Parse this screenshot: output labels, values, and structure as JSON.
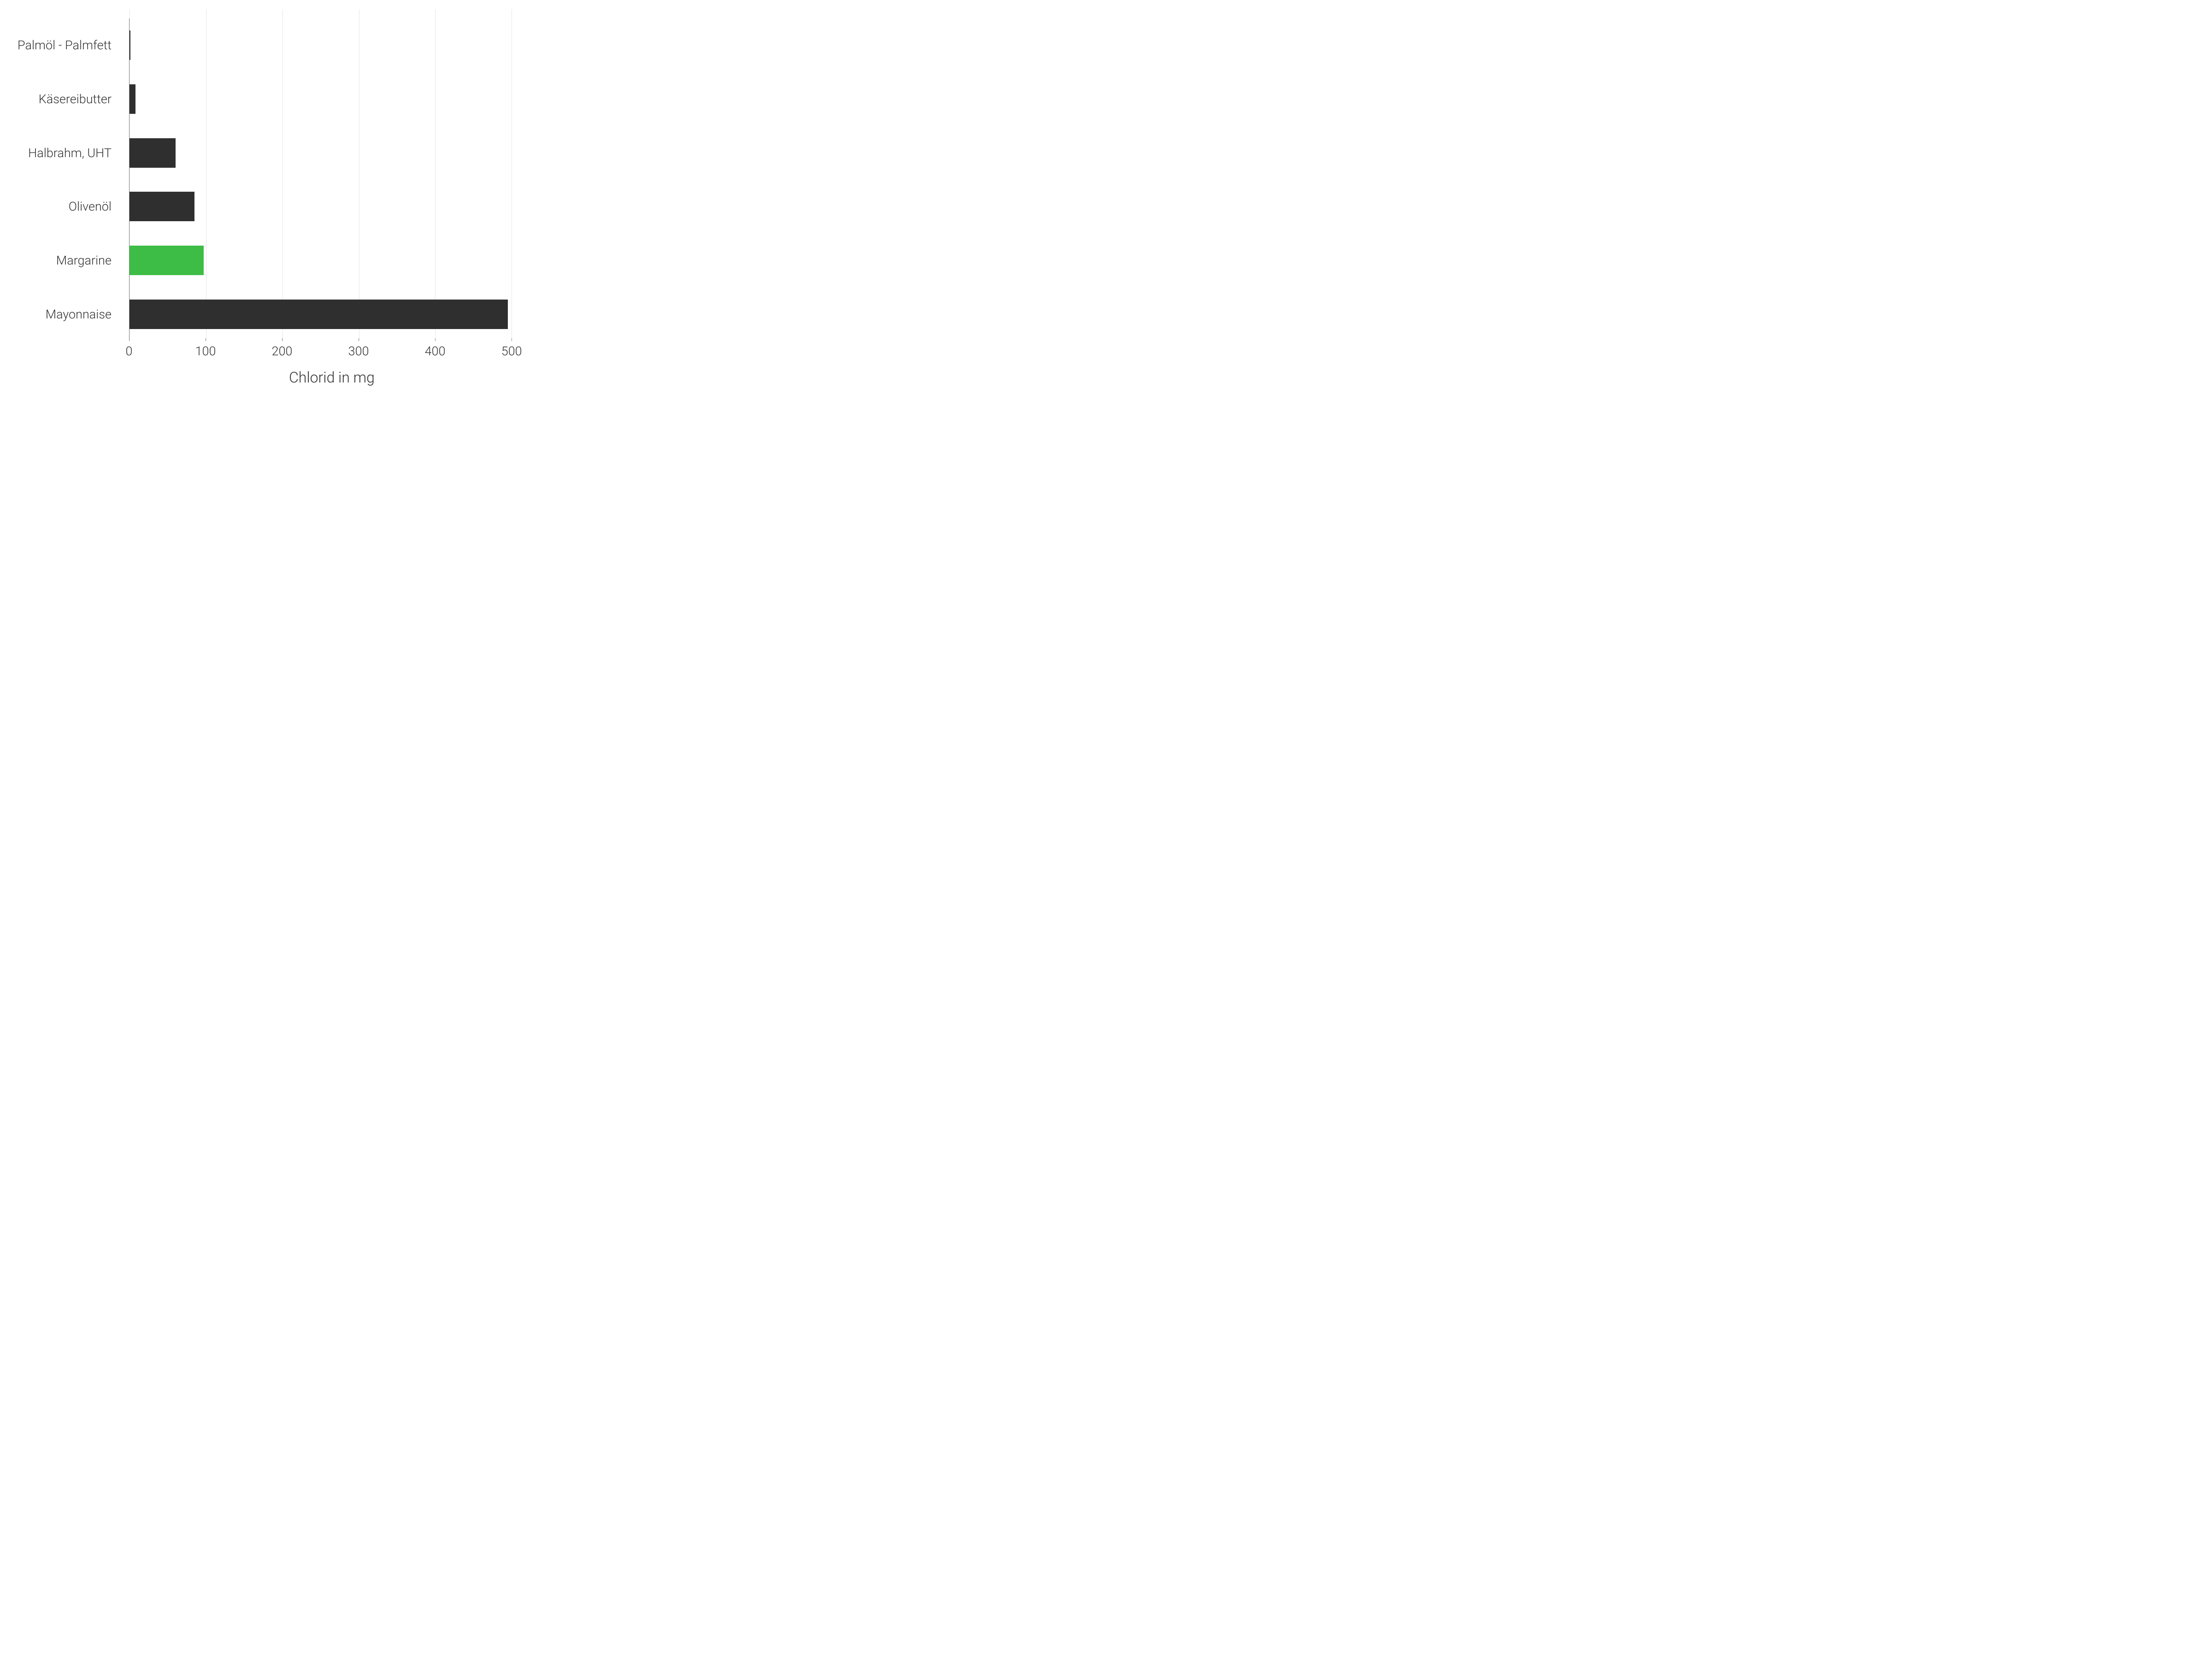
{
  "chart": {
    "type": "bar-horizontal",
    "x_axis": {
      "title": "Chlorid in mg",
      "min": 0,
      "max": 530,
      "ticks": [
        0,
        100,
        200,
        300,
        400,
        500
      ],
      "title_fontsize": 32,
      "tick_fontsize": 27
    },
    "y_axis": {
      "label_fontsize": 27,
      "label_color": "#333333"
    },
    "categories": [
      {
        "label": "Palmöl - Palmfett",
        "value": 1,
        "color": "#2f2f2f"
      },
      {
        "label": "Käsereibutter",
        "value": 8,
        "color": "#2f2f2f"
      },
      {
        "label": "Halbrahm, UHT",
        "value": 60,
        "color": "#2f2f2f"
      },
      {
        "label": "Olivenöl",
        "value": 85,
        "color": "#2f2f2f"
      },
      {
        "label": "Margarine",
        "value": 97,
        "color": "#3ebd46"
      },
      {
        "label": "Mayonnaise",
        "value": 495,
        "color": "#2f2f2f"
      }
    ],
    "bar_height_ratio": 0.55,
    "background_color": "#ffffff",
    "grid_color": "#e5e5e5",
    "axis_color": "#888888",
    "colors": {
      "default_bar": "#2f2f2f",
      "highlight_bar": "#3ebd46"
    }
  }
}
